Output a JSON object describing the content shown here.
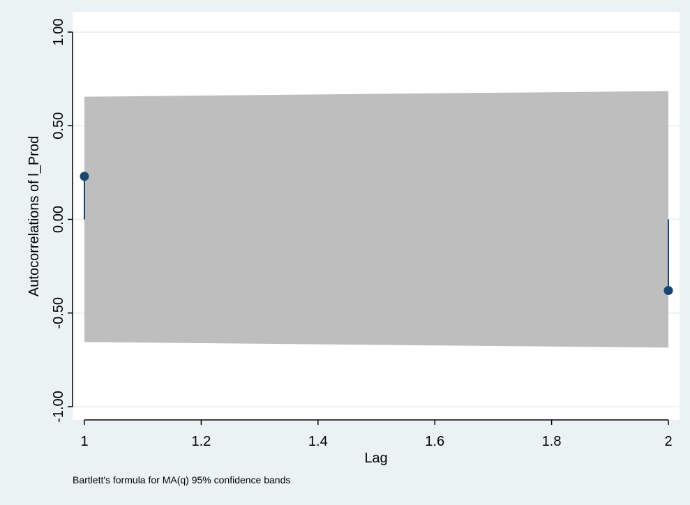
{
  "chart_data": {
    "type": "line",
    "xlabel": "Lag",
    "ylabel": "Autocorrelations of l_Prod",
    "note": "Bartlett's formula for MA(q) 95% confidence bands",
    "xlim": [
      1,
      2
    ],
    "ylim": [
      -1,
      1
    ],
    "x_ticks": [
      "1",
      "1.2",
      "1.4",
      "1.6",
      "1.8",
      "2"
    ],
    "y_ticks": [
      "-1.00",
      "-0.50",
      "0.00",
      "0.50",
      "1.00"
    ],
    "grid": true,
    "series": [
      {
        "lag": [
          1,
          2
        ],
        "values": [
          0.23,
          -0.38
        ]
      }
    ],
    "confidence_band": {
      "lag": [
        1,
        2
      ],
      "upper": [
        0.655,
        0.685
      ],
      "lower": [
        -0.655,
        -0.685
      ]
    },
    "colors": {
      "band": "#bebebe",
      "marker": "#1a476f",
      "background_outer": "#eaf2f3",
      "plot_background": "#ffffff",
      "grid": "#eaf2f3"
    }
  }
}
